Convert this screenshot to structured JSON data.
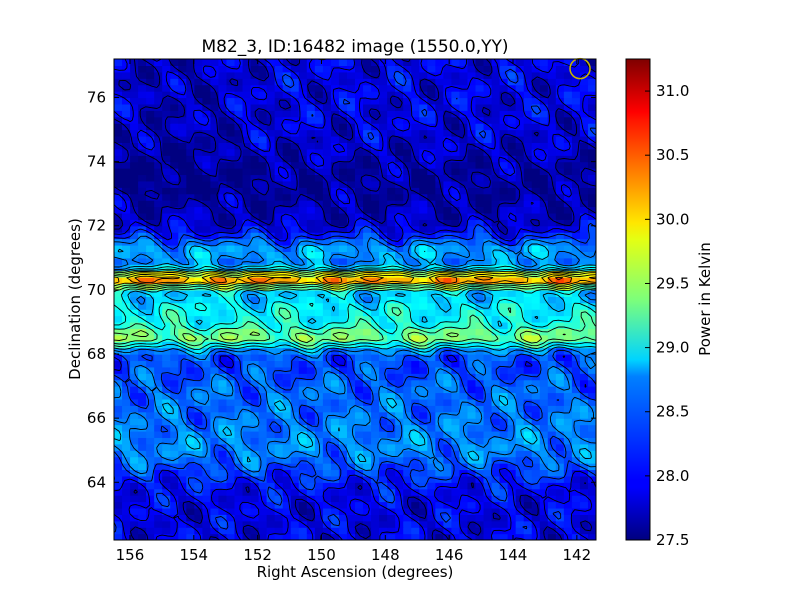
{
  "chart_data": {
    "type": "heatmap",
    "title": "M82_3, ID:16482 image (1550.0,YY)",
    "xlabel": "Right Ascension (degrees)",
    "ylabel": "Declination (degrees)",
    "colorbar_label": "Power in Kelvin",
    "xlim": [
      156.5,
      141.4
    ],
    "ylim": [
      62.2,
      77.2
    ],
    "x_ticks": [
      156,
      154,
      152,
      150,
      148,
      146,
      144,
      142
    ],
    "x_tick_labels": [
      "156",
      "154",
      "152",
      "150",
      "148",
      "146",
      "144",
      "142"
    ],
    "y_ticks": [
      64,
      66,
      68,
      70,
      72,
      74,
      76
    ],
    "y_tick_labels": [
      "64",
      "66",
      "68",
      "70",
      "72",
      "74",
      "76"
    ],
    "color_range": [
      27.5,
      31.25
    ],
    "colorbar_ticks": [
      27.5,
      28.0,
      28.5,
      29.0,
      29.5,
      30.0,
      30.5,
      31.0
    ],
    "colorbar_tick_labels": [
      "27.5",
      "28.0",
      "28.5",
      "29.0",
      "29.5",
      "30.0",
      "30.5",
      "31.0"
    ],
    "colormap": "jet",
    "contours": "black lines",
    "beam_marker": {
      "ra": 141.9,
      "dec": 76.9
    },
    "bands": [
      {
        "dec": 70.35,
        "width": 0.3,
        "amplitude": 2.0
      },
      {
        "dec": 69.3,
        "width": 0.9,
        "amplitude": 1.0
      },
      {
        "dec": 68.5,
        "width": 0.35,
        "amplitude": 0.9
      },
      {
        "dec": 66.7,
        "width": 1.4,
        "amplitude": 0.45
      },
      {
        "dec": 65.0,
        "width": 0.9,
        "amplitude": 0.45
      },
      {
        "dec": 73.2,
        "width": 1.3,
        "amplitude": -0.25
      },
      {
        "dec": 71.2,
        "width": 0.5,
        "amplitude": 0.7
      }
    ],
    "baseline": 27.9
  }
}
